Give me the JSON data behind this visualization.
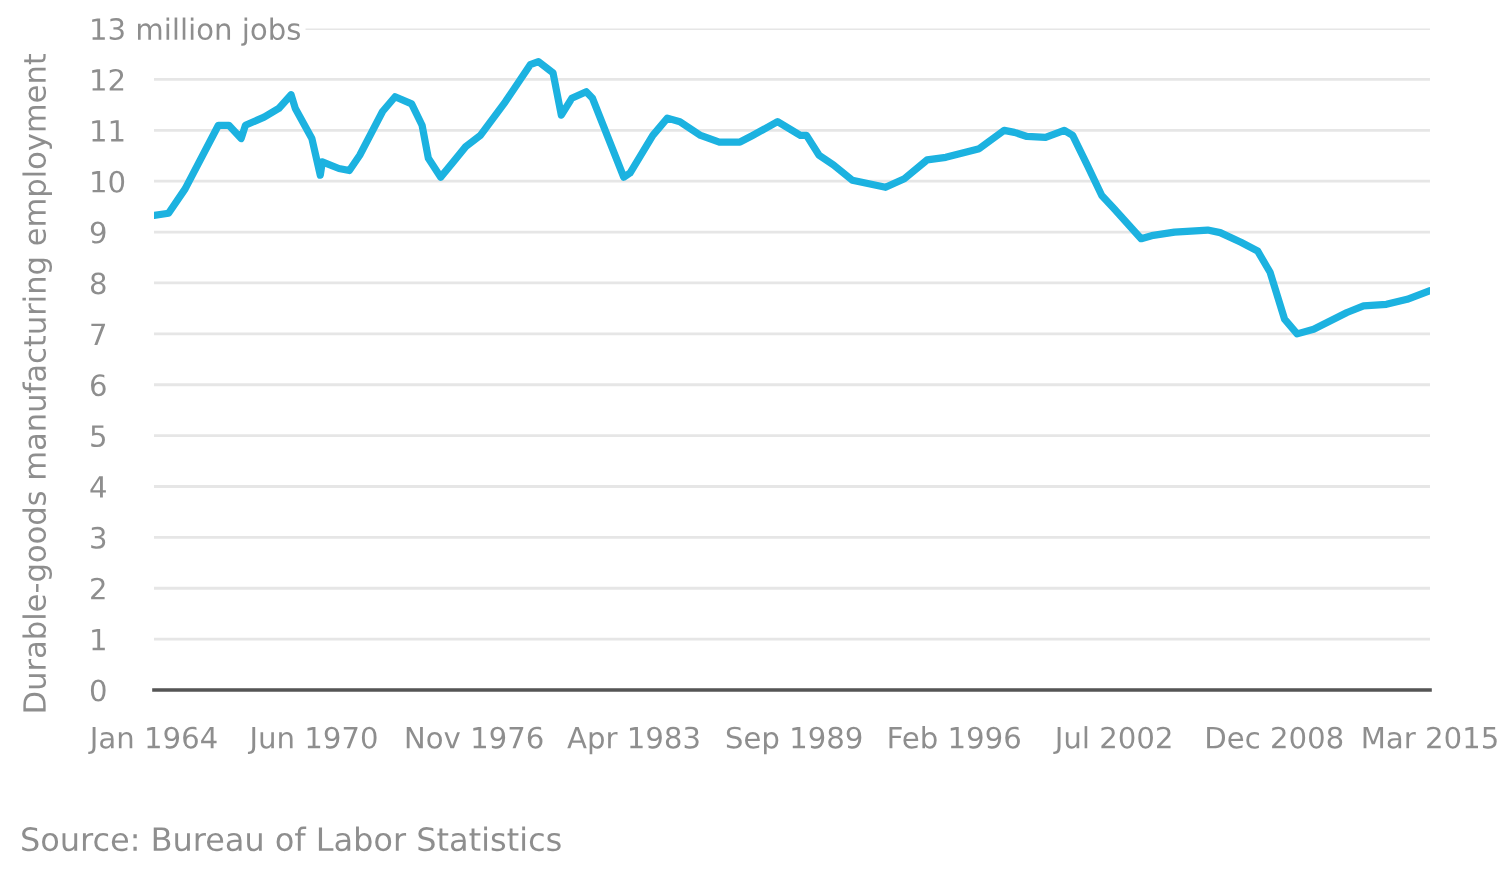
{
  "chart_data": {
    "type": "line",
    "ylabel": "Durable-goods manufacturing employment",
    "x": [
      "1964-01",
      "1964-08",
      "1965-04",
      "1966-08",
      "1967-01",
      "1967-07",
      "1967-09",
      "1968-06",
      "1969-01",
      "1969-07",
      "1969-09",
      "1970-05",
      "1970-09",
      "1970-10",
      "1971-06",
      "1971-11",
      "1972-04",
      "1973-03",
      "1973-09",
      "1974-05",
      "1974-10",
      "1975-01",
      "1975-07",
      "1976-01",
      "1976-07",
      "1977-02",
      "1978-02",
      "1979-02",
      "1979-06",
      "1980-01",
      "1980-05",
      "1980-10",
      "1981-05",
      "1981-08",
      "1982-11",
      "1983-02",
      "1984-01",
      "1984-08",
      "1985-02",
      "1985-12",
      "1986-09",
      "1987-07",
      "1988-01",
      "1989-01",
      "1989-12",
      "1990-03",
      "1990-09",
      "1991-04",
      "1992-01",
      "1993-05",
      "1994-02",
      "1995-01",
      "1995-10",
      "1997-02",
      "1998-02",
      "1998-07",
      "1999-01",
      "1999-10",
      "2000-07",
      "2000-11",
      "2001-06",
      "2002-01",
      "2002-07",
      "2003-08",
      "2004-01",
      "2004-12",
      "2006-04",
      "2006-10",
      "2007-08",
      "2008-04",
      "2008-10",
      "2009-05",
      "2009-11",
      "2010-07",
      "2011-11",
      "2012-07",
      "2013-06",
      "2014-04",
      "2015-03"
    ],
    "series": [
      {
        "color": "#1cb2e0",
        "values": [
          9.33,
          9.37,
          9.85,
          11.1,
          11.1,
          10.84,
          11.1,
          11.26,
          11.43,
          11.7,
          11.43,
          10.84,
          10.12,
          10.38,
          10.25,
          10.21,
          10.51,
          11.37,
          11.66,
          11.52,
          11.1,
          10.45,
          10.08,
          10.38,
          10.68,
          10.9,
          11.56,
          12.29,
          12.35,
          12.13,
          11.3,
          11.63,
          11.76,
          11.63,
          10.08,
          10.16,
          10.9,
          11.24,
          11.17,
          10.9,
          10.77,
          10.77,
          10.9,
          11.17,
          10.9,
          10.9,
          10.51,
          10.32,
          10.02,
          9.88,
          10.05,
          10.42,
          10.47,
          10.64,
          11.0,
          10.96,
          10.88,
          10.86,
          11.0,
          10.9,
          10.32,
          9.72,
          9.46,
          8.87,
          8.93,
          9.0,
          9.04,
          8.99,
          8.8,
          8.63,
          8.21,
          7.29,
          7.0,
          7.09,
          7.42,
          7.55,
          7.58,
          7.68,
          7.85
        ]
      }
    ],
    "xlim": [
      "1964-01",
      "2015-03"
    ],
    "xticks": [
      {
        "value": "1964-01",
        "label": "Jan 1964"
      },
      {
        "value": "1970-06",
        "label": "Jun 1970"
      },
      {
        "value": "1976-11",
        "label": "Nov 1976"
      },
      {
        "value": "1983-04",
        "label": "Apr 1983"
      },
      {
        "value": "1989-09",
        "label": "Sep 1989"
      },
      {
        "value": "1996-02",
        "label": "Feb 1996"
      },
      {
        "value": "2002-07",
        "label": "Jul 2002"
      },
      {
        "value": "2008-12",
        "label": "Dec 2008"
      },
      {
        "value": "2015-03",
        "label": "Mar 2015"
      }
    ],
    "ylim": [
      0,
      13
    ],
    "yticks": [
      0,
      1,
      2,
      3,
      4,
      5,
      6,
      7,
      8,
      9,
      10,
      11,
      12,
      {
        "value": 13,
        "label": "13 million jobs"
      }
    ],
    "grid": "y",
    "line_style": "solid",
    "annotations": [
      "Source: Bureau of Labor Statistics"
    ]
  }
}
